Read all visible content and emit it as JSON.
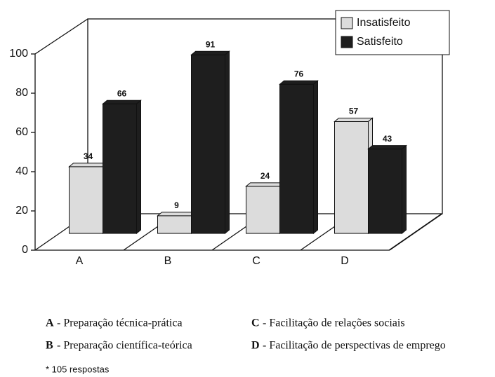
{
  "chart_data": {
    "type": "bar3d",
    "categories": [
      "A",
      "B",
      "C",
      "D"
    ],
    "series": [
      {
        "name": "Insatisfeito",
        "color": "#dcdcdc",
        "values": [
          34,
          9,
          24,
          57
        ]
      },
      {
        "name": "Satisfeito",
        "color": "#1e1e1e",
        "values": [
          66,
          91,
          76,
          43
        ]
      }
    ],
    "ylim": [
      0,
      100
    ],
    "yticks": [
      0,
      20,
      40,
      60,
      80,
      100
    ],
    "legend": "upper right"
  },
  "category_descriptions": [
    "- Preparação técnica-prática",
    "- Preparação científica-teórica",
    "- Facilitação de relações sociais",
    "- Facilitação de perspectivas de emprego"
  ],
  "footnote": "* 105 respostas"
}
